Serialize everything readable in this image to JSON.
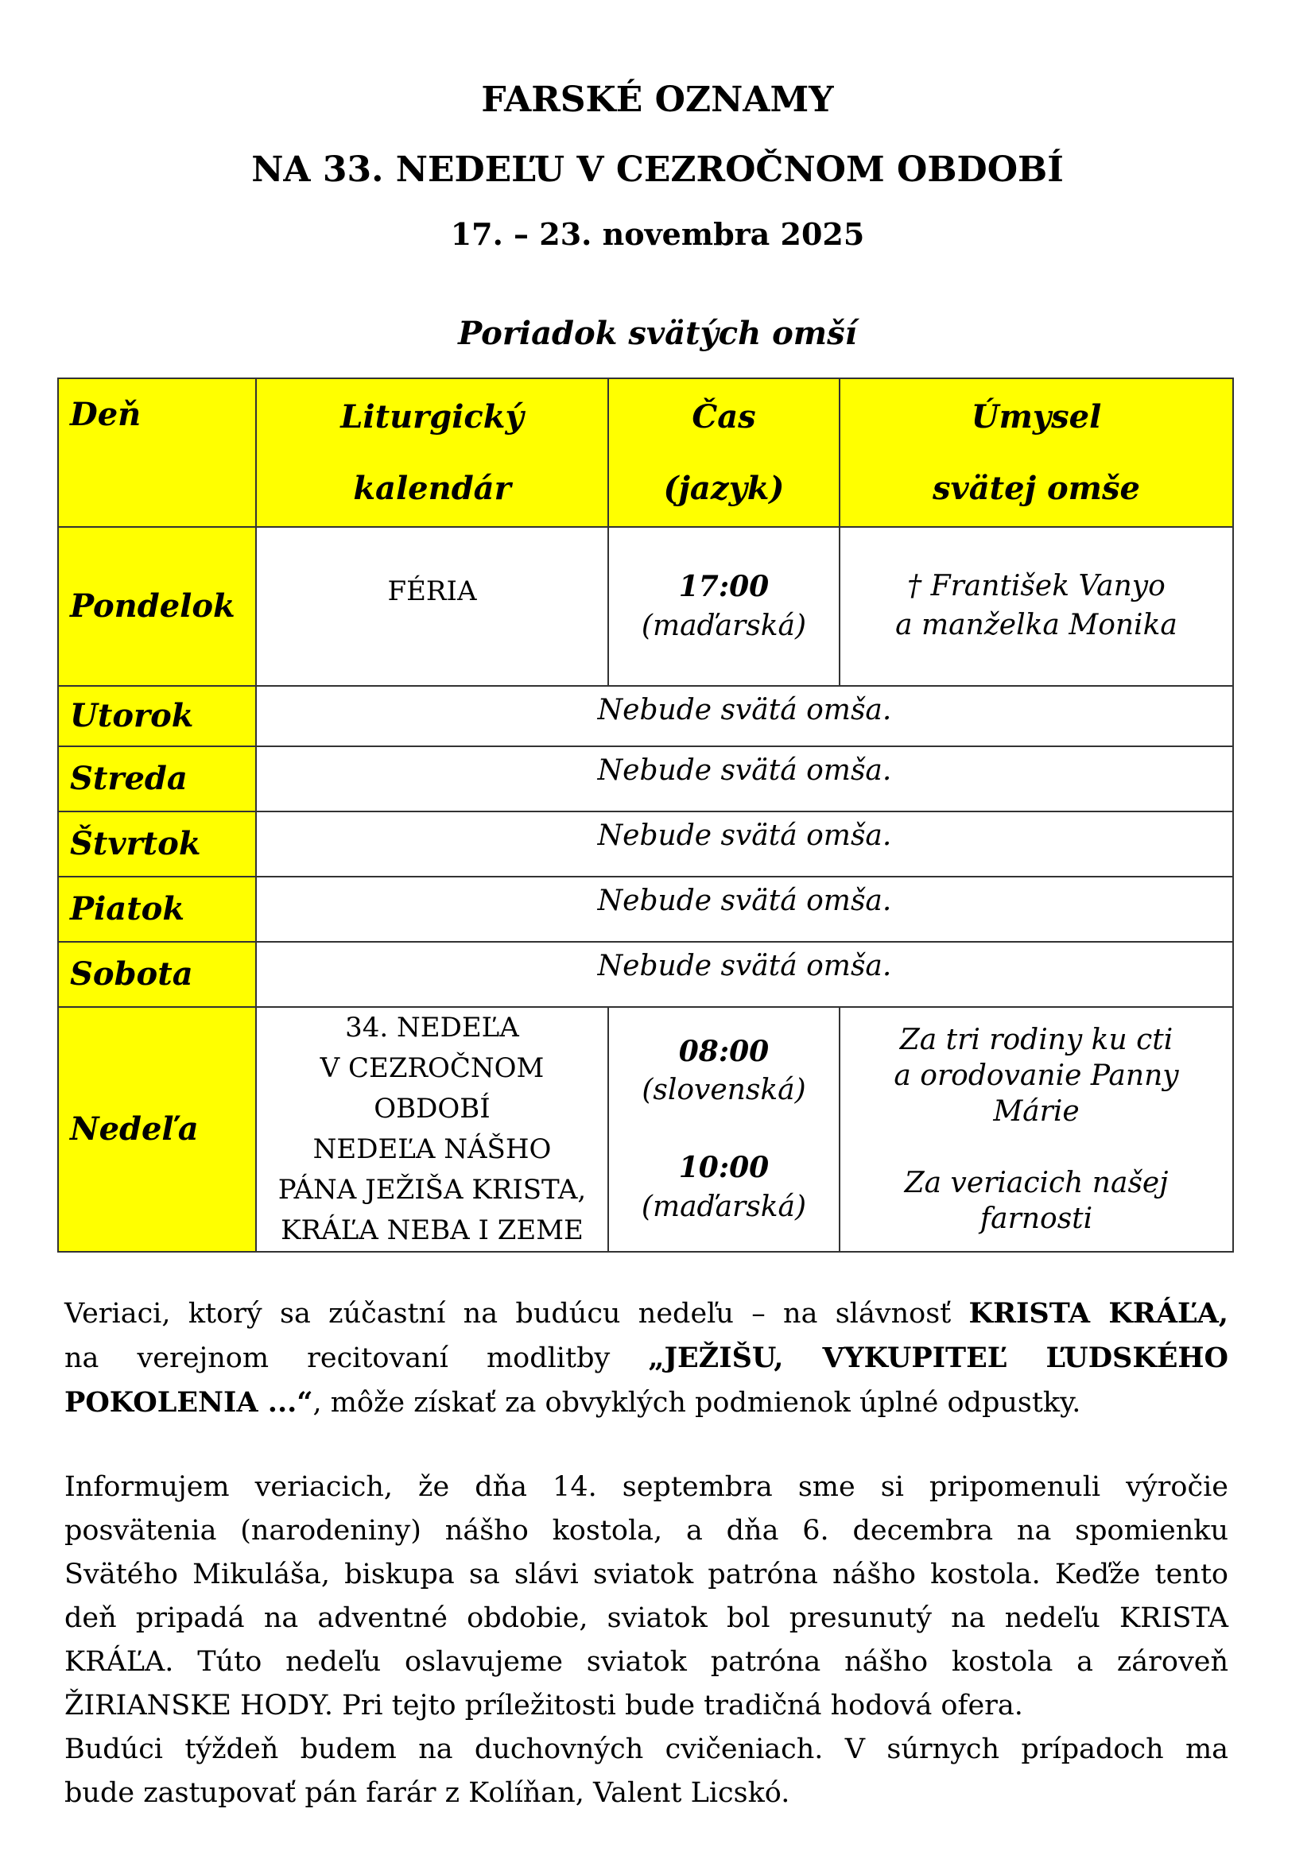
{
  "header": {
    "title": "FARSKÉ OZNAMY",
    "subtitle": "NA 33. NEDEĽU V CEZROČNOM OBDOBÍ",
    "date": "17. – 23. novembra 2025",
    "section": "Poriadok svätých omší"
  },
  "table": {
    "colors": {
      "header_bg": "#ffff00"
    },
    "headers": {
      "day": "Deň",
      "calendar_1": "Liturgický",
      "calendar_2": "kalendár",
      "time_1": "Čas",
      "time_2": "(jazyk)",
      "intention_1": "Úmysel",
      "intention_2": "svätej omše"
    },
    "monday": {
      "day": "Pondelok",
      "calendar": "FÉRIA",
      "time": "17:00",
      "lang": "(maďarská)",
      "intention_1": "† František Vanyo",
      "intention_2": "a manželka Monika"
    },
    "no_mass": "Nebude svätá omša.",
    "days": [
      "Utorok",
      "Streda",
      "Štvrtok",
      "Piatok",
      "Sobota"
    ],
    "sunday": {
      "day": "Nedeľa",
      "calendar": [
        "34. NEDEĽA",
        "V CEZROČNOM",
        "OBDOBÍ",
        "NEDEĽA NÁŠHO",
        "PÁNA JEŽIŠA KRISTA,",
        "KRÁĽA NEBA I ZEME"
      ],
      "time_1": "08:00",
      "lang_1": "(slovenská)",
      "time_2": "10:00",
      "lang_2": "(maďarská)",
      "intention_1": [
        "Za tri rodiny ku cti",
        "a orodovanie Panny",
        "Márie"
      ],
      "intention_2": [
        "Za veriacich našej",
        "farnosti"
      ]
    }
  },
  "paragraphs": {
    "p1": {
      "a": "Veriaci, ktorý sa zúčastní na budúcu nedeľu – na slávnosť ",
      "b": "KRISTA KRÁĽA,",
      "c": "na verejnom recitovaní modlitby ",
      "d": "„JEŽIŠU, VYKUPITEĽ ĽUDSKÉHO",
      "e": "POKOLENIA ...“",
      "f": ", môže získať za obvyklých podmienok úplné odpustky."
    },
    "p2": [
      "Informujem veriacich, že dňa 14. septembra sme si pripomenuli výročie",
      "posvätenia (narodeniny) nášho kostola, a dňa 6. decembra na spomienku",
      "Svätého Mikuláša, biskupa sa slávi sviatok patróna nášho kostola. Keďže tento",
      "deň pripadá na adventné obdobie, sviatok bol presunutý na nedeľu KRISTA",
      "KRÁĽA. Túto nedeľu oslavujeme sviatok patróna nášho kostola a zároveň",
      "ŽIRIANSKE HODY. Pri tejto príležitosti bude tradičná hodová ofera.",
      "Budúci týždeň budem na duchovných cvičeniach. V súrnych prípadoch ma",
      "bude zastupovať pán farár z Kolíňan, Valent Licskó."
    ]
  }
}
